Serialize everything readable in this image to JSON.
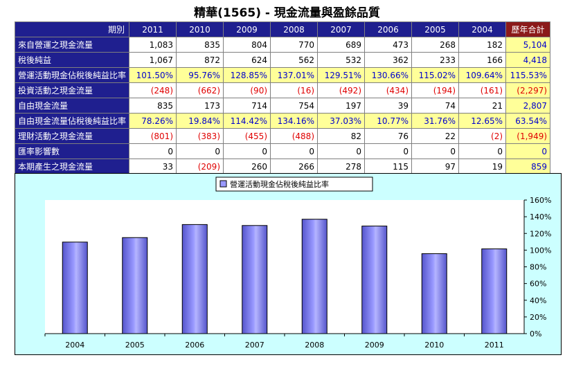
{
  "title": "精華(1565) -  現金流量與盈餘品質",
  "table": {
    "header_label": "期別",
    "years": [
      "2011",
      "2010",
      "2009",
      "2008",
      "2007",
      "2006",
      "2005",
      "2004"
    ],
    "total_label": "歷年合計",
    "rows": [
      {
        "label": "來自營運之現金流量",
        "values": [
          "1,083",
          "835",
          "804",
          "770",
          "689",
          "473",
          "268",
          "182"
        ],
        "total": "5,104",
        "neg": [
          false,
          false,
          false,
          false,
          false,
          false,
          false,
          false
        ],
        "total_neg": false,
        "yellow": false
      },
      {
        "label": "稅後純益",
        "values": [
          "1,067",
          "872",
          "624",
          "562",
          "532",
          "362",
          "233",
          "166"
        ],
        "total": "4,418",
        "neg": [
          false,
          false,
          false,
          false,
          false,
          false,
          false,
          false
        ],
        "total_neg": false,
        "yellow": false
      },
      {
        "label": "營運活動現金佔稅後純益比率",
        "values": [
          "101.50%",
          "95.76%",
          "128.85%",
          "137.01%",
          "129.51%",
          "130.66%",
          "115.02%",
          "109.64%"
        ],
        "total": "115.53%",
        "neg": [
          false,
          false,
          false,
          false,
          false,
          false,
          false,
          false
        ],
        "total_neg": false,
        "yellow": true
      },
      {
        "label": "投資活動之現金流量",
        "values": [
          "(248)",
          "(662)",
          "(90)",
          "(16)",
          "(492)",
          "(434)",
          "(194)",
          "(161)"
        ],
        "total": "(2,297)",
        "neg": [
          true,
          true,
          true,
          true,
          true,
          true,
          true,
          true
        ],
        "total_neg": true,
        "yellow": false
      },
      {
        "label": "自由現金流量",
        "values": [
          "835",
          "173",
          "714",
          "754",
          "197",
          "39",
          "74",
          "21"
        ],
        "total": "2,807",
        "neg": [
          false,
          false,
          false,
          false,
          false,
          false,
          false,
          false
        ],
        "total_neg": false,
        "yellow": false
      },
      {
        "label": "自由現金流量佔稅後純益比率",
        "values": [
          "78.26%",
          "19.84%",
          "114.42%",
          "134.16%",
          "37.03%",
          "10.77%",
          "31.76%",
          "12.65%"
        ],
        "total": "63.54%",
        "neg": [
          false,
          false,
          false,
          false,
          false,
          false,
          false,
          false
        ],
        "total_neg": false,
        "yellow": true
      },
      {
        "label": "理財活動之現金流量",
        "values": [
          "(801)",
          "(383)",
          "(455)",
          "(488)",
          "82",
          "76",
          "22",
          "(2)"
        ],
        "total": "(1,949)",
        "neg": [
          true,
          true,
          true,
          true,
          false,
          false,
          false,
          true
        ],
        "total_neg": true,
        "yellow": false
      },
      {
        "label": "匯率影響數",
        "values": [
          "0",
          "0",
          "0",
          "0",
          "0",
          "0",
          "0",
          "0"
        ],
        "total": "0",
        "neg": [
          false,
          false,
          false,
          false,
          false,
          false,
          false,
          false
        ],
        "total_neg": false,
        "yellow": false
      },
      {
        "label": "本期產生之現金流量",
        "values": [
          "33",
          "(209)",
          "260",
          "266",
          "278",
          "115",
          "97",
          "19"
        ],
        "total": "859",
        "neg": [
          false,
          true,
          false,
          false,
          false,
          false,
          false,
          false
        ],
        "total_neg": false,
        "yellow": false
      }
    ]
  },
  "chart_data": {
    "type": "bar",
    "categories": [
      "2004",
      "2005",
      "2006",
      "2007",
      "2008",
      "2009",
      "2010",
      "2011"
    ],
    "series": [
      {
        "name": "營運活動現金佔稅後純益比率",
        "values": [
          109.64,
          115.02,
          130.66,
          129.51,
          137.01,
          128.85,
          95.76,
          101.5
        ]
      }
    ],
    "ylim": [
      0,
      160
    ],
    "yticks": [
      0,
      20,
      40,
      60,
      80,
      100,
      120,
      140,
      160
    ],
    "ytick_labels": [
      "0%",
      "20%",
      "40%",
      "60%",
      "80%",
      "100%",
      "120%",
      "140%",
      "160%"
    ],
    "y_axis_side": "right",
    "legend_position": "top",
    "grid": false,
    "bar_color": "#9999ff",
    "background_color": "#ccffff",
    "plot_color": "#ffffff"
  }
}
